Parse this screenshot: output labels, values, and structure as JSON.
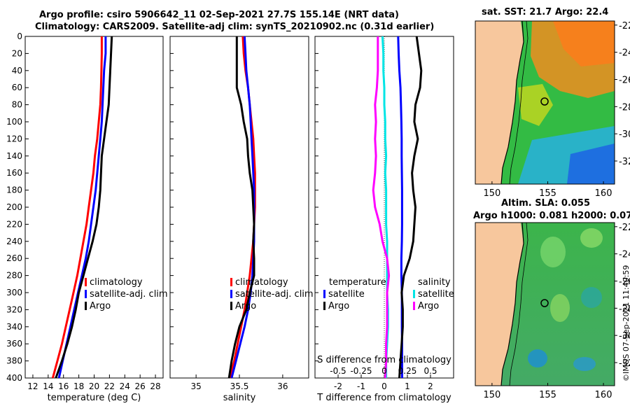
{
  "header": {
    "line1": "Argo profile: csiro 5906642_11 02-Sep-2021 27.7S 155.14E (NRT data)",
    "line2": "Climatology: CARS2009. Satellite-adj clim: synTS_20210902.nc (0.31d earlier)"
  },
  "copyright": "©IMOS 07-Sep-2021 11:40:59",
  "colors": {
    "climatology": "#ff0000",
    "satellite": "#0000ff",
    "argo": "#000000",
    "salinity_diff": "#00e5e5",
    "temperature_diff": "#ff00ff"
  },
  "chart_data": [
    {
      "type": "line",
      "name": "temperature-profile",
      "xlabel": "temperature (deg C)",
      "ylabel": "",
      "xlim": [
        11,
        29
      ],
      "ylim": [
        0,
        400
      ],
      "xticks": [
        12,
        14,
        16,
        18,
        20,
        22,
        24,
        26,
        28
      ],
      "yticks": [
        0,
        20,
        40,
        60,
        80,
        100,
        120,
        140,
        160,
        180,
        200,
        220,
        240,
        260,
        280,
        300,
        320,
        340,
        360,
        380,
        400
      ],
      "legend": [
        "climatology",
        "satellite-adj. clim",
        "Argo"
      ],
      "series": [
        {
          "name": "climatology",
          "color": "#ff0000",
          "depth": [
            0,
            20,
            40,
            60,
            80,
            100,
            120,
            140,
            160,
            180,
            200,
            220,
            240,
            260,
            280,
            300,
            320,
            340,
            360,
            380,
            400
          ],
          "values": [
            21.0,
            21.0,
            20.95,
            20.9,
            20.8,
            20.6,
            20.4,
            20.1,
            19.9,
            19.6,
            19.3,
            19.0,
            18.6,
            18.2,
            17.8,
            17.3,
            16.8,
            16.3,
            15.8,
            15.2,
            14.6
          ]
        },
        {
          "name": "satellite-adj. clim",
          "color": "#0000ff",
          "depth": [
            0,
            20,
            40,
            60,
            80,
            100,
            120,
            140,
            160,
            180,
            200,
            220,
            240,
            260,
            280,
            300,
            320,
            340,
            360,
            380,
            400
          ],
          "values": [
            21.5,
            21.5,
            21.3,
            21.2,
            21.1,
            21.0,
            20.8,
            20.6,
            20.4,
            20.2,
            19.9,
            19.6,
            19.3,
            18.9,
            18.4,
            17.9,
            17.4,
            16.9,
            16.4,
            15.9,
            15.4
          ]
        },
        {
          "name": "Argo",
          "color": "#000000",
          "depth": [
            0,
            20,
            40,
            60,
            80,
            100,
            120,
            140,
            160,
            180,
            200,
            220,
            240,
            260,
            280,
            300,
            320,
            340,
            360,
            380,
            400
          ],
          "values": [
            22.3,
            22.2,
            22.1,
            22.0,
            21.9,
            21.6,
            21.3,
            21.0,
            20.9,
            20.8,
            20.6,
            20.3,
            19.8,
            19.2,
            18.6,
            18.0,
            17.6,
            17.1,
            16.5,
            15.8,
            15.0
          ]
        }
      ]
    },
    {
      "type": "line",
      "name": "salinity-profile",
      "xlabel": "salinity",
      "ylabel": "",
      "xlim": [
        34.7,
        36.3
      ],
      "ylim": [
        0,
        400
      ],
      "xticks": [
        35,
        35.5,
        36
      ],
      "legend": [
        "climatology",
        "satellite-adj. clim",
        "Argo"
      ],
      "series": [
        {
          "name": "climatology",
          "color": "#ff0000",
          "depth": [
            0,
            20,
            40,
            60,
            80,
            100,
            120,
            140,
            160,
            180,
            200,
            220,
            240,
            260,
            280,
            300,
            320,
            340,
            360,
            380,
            400
          ],
          "values": [
            35.54,
            35.55,
            35.57,
            35.6,
            35.62,
            35.64,
            35.66,
            35.67,
            35.68,
            35.68,
            35.68,
            35.67,
            35.66,
            35.64,
            35.62,
            35.59,
            35.56,
            35.52,
            35.48,
            35.44,
            35.39
          ]
        },
        {
          "name": "satellite-adj. clim",
          "color": "#0000ff",
          "depth": [
            0,
            20,
            40,
            60,
            80,
            100,
            120,
            140,
            160,
            180,
            200,
            220,
            240,
            260,
            280,
            300,
            320,
            340,
            360,
            380,
            400
          ],
          "values": [
            35.56,
            35.57,
            35.58,
            35.6,
            35.62,
            35.63,
            35.64,
            35.65,
            35.66,
            35.67,
            35.67,
            35.67,
            35.67,
            35.66,
            35.65,
            35.63,
            35.6,
            35.56,
            35.51,
            35.46,
            35.41
          ]
        },
        {
          "name": "Argo",
          "color": "#000000",
          "depth": [
            0,
            20,
            40,
            60,
            80,
            100,
            120,
            140,
            160,
            180,
            200,
            220,
            240,
            260,
            280,
            300,
            320,
            340,
            360,
            380,
            400
          ],
          "values": [
            35.47,
            35.47,
            35.47,
            35.47,
            35.52,
            35.55,
            35.59,
            35.6,
            35.62,
            35.65,
            35.66,
            35.67,
            35.66,
            35.67,
            35.67,
            35.62,
            35.58,
            35.5,
            35.45,
            35.41,
            35.38
          ]
        }
      ]
    },
    {
      "type": "line",
      "name": "difference-profile",
      "xlabel": "T difference from climatology",
      "x2label": "S difference from climatology",
      "xlim": [
        -3,
        3
      ],
      "ylim": [
        0,
        400
      ],
      "xticks": [
        -2,
        -1,
        0,
        1,
        2
      ],
      "xticklabels": [
        "-2",
        "-1",
        "0",
        "1",
        "2"
      ],
      "x2ticks": [
        -0.5,
        -0.25,
        0,
        0.25,
        0.5
      ],
      "x2ticklabels": [
        "-0.5",
        "-0.25",
        "0",
        "0.25",
        "0.5"
      ],
      "legend_t_title": "temperature",
      "legend_s_title": "salinity",
      "legend_t": [
        "satellite",
        "Argo"
      ],
      "legend_s": [
        "satellite",
        "Argo"
      ],
      "series": [
        {
          "name": "T satellite",
          "color": "#0000ff",
          "depth": [
            0,
            20,
            40,
            60,
            80,
            100,
            120,
            140,
            160,
            180,
            200,
            220,
            240,
            260,
            280,
            300,
            320,
            340,
            360,
            380,
            400
          ],
          "values": [
            0.6,
            0.62,
            0.65,
            0.7,
            0.72,
            0.74,
            0.75,
            0.75,
            0.76,
            0.77,
            0.77,
            0.77,
            0.76,
            0.74,
            0.74,
            0.76,
            0.76,
            0.76,
            0.77,
            0.77,
            0.77
          ]
        },
        {
          "name": "T Argo",
          "color": "#000000",
          "depth": [
            0,
            20,
            40,
            60,
            80,
            100,
            120,
            140,
            160,
            180,
            200,
            220,
            240,
            260,
            280,
            300,
            320,
            340,
            360,
            380,
            400
          ],
          "values": [
            1.4,
            1.5,
            1.6,
            1.55,
            1.35,
            1.3,
            1.45,
            1.3,
            1.2,
            1.25,
            1.35,
            1.3,
            1.25,
            1.1,
            0.85,
            0.75,
            0.8,
            0.8,
            0.75,
            0.7,
            0.65
          ]
        },
        {
          "name": "S satellite",
          "color": "#00e5e5",
          "depth": [
            0,
            20,
            40,
            60,
            80,
            100,
            120,
            140,
            160,
            180,
            200,
            220,
            240,
            260,
            280,
            300,
            320,
            340,
            360,
            380,
            400
          ],
          "values": [
            -0.02,
            -0.01,
            -0.01,
            0.0,
            0.0,
            0.01,
            0.01,
            0.02,
            0.01,
            0.02,
            0.02,
            0.02,
            0.03,
            0.03,
            0.03,
            0.03,
            0.04,
            0.04,
            0.03,
            0.02,
            0.02
          ]
        },
        {
          "name": "S Argo",
          "color": "#ff00ff",
          "depth": [
            0,
            20,
            40,
            60,
            80,
            100,
            120,
            140,
            160,
            180,
            200,
            220,
            240,
            260,
            280,
            300,
            320,
            340,
            360,
            380,
            400
          ],
          "values": [
            -0.07,
            -0.07,
            -0.07,
            -0.08,
            -0.1,
            -0.09,
            -0.1,
            -0.09,
            -0.1,
            -0.12,
            -0.1,
            -0.05,
            -0.02,
            0.03,
            0.05,
            0.03,
            0.03,
            0.03,
            0.02,
            0.02,
            0.01
          ]
        }
      ]
    },
    {
      "type": "heatmap",
      "name": "sst-map",
      "title": "sat. SST: 21.7 Argo: 22.4",
      "xlim": [
        148.5,
        161
      ],
      "ylim": [
        -33.7,
        -21.7
      ],
      "xticks": [
        150,
        155,
        160
      ],
      "yticks": [
        -22,
        -24,
        -26,
        -28,
        -30,
        -32
      ],
      "argo_position": {
        "lon": 155.14,
        "lat": -27.7
      }
    },
    {
      "type": "heatmap",
      "name": "sla-map",
      "title": "Altim. SLA: 0.055",
      "subtitle": "Argo h1000: 0.081 h2000: 0.07",
      "xlim": [
        148.5,
        161
      ],
      "ylim": [
        -33.7,
        -21.7
      ],
      "xticks": [
        150,
        155,
        160
      ],
      "yticks": [
        -22,
        -24,
        -26,
        -28,
        -30,
        -32
      ],
      "argo_position": {
        "lon": 155.14,
        "lat": -27.7
      }
    }
  ]
}
